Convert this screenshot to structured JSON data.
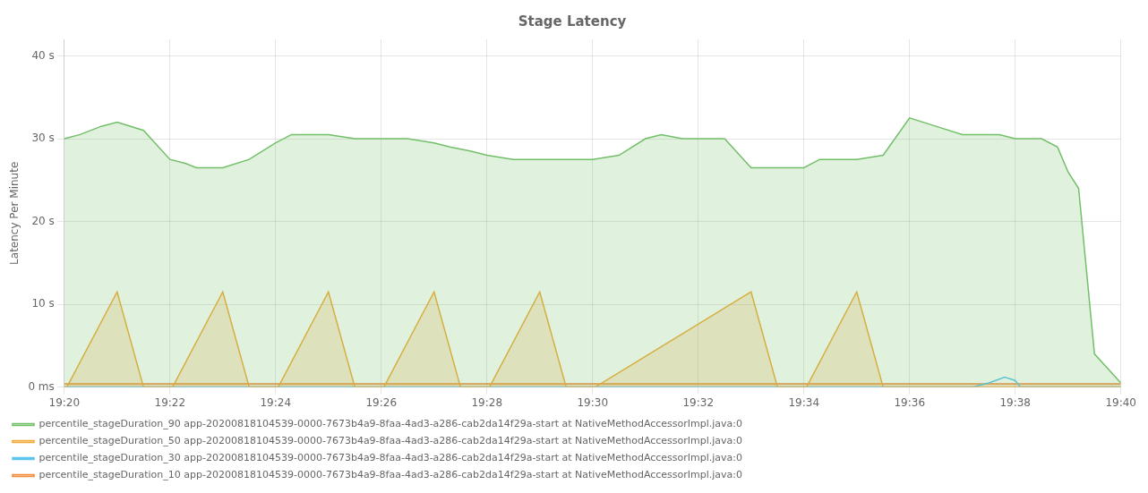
{
  "chart_data": {
    "type": "line",
    "title": "Stage Latency",
    "ylabel": "Latency Per Minute",
    "xlim": [
      0,
      20
    ],
    "xticks": [
      {
        "value": 0,
        "label": "19:20"
      },
      {
        "value": 2,
        "label": "19:22"
      },
      {
        "value": 4,
        "label": "19:24"
      },
      {
        "value": 6,
        "label": "19:26"
      },
      {
        "value": 8,
        "label": "19:28"
      },
      {
        "value": 10,
        "label": "19:30"
      },
      {
        "value": 12,
        "label": "19:32"
      },
      {
        "value": 14,
        "label": "19:34"
      },
      {
        "value": 16,
        "label": "19:36"
      },
      {
        "value": 18,
        "label": "19:38"
      },
      {
        "value": 20,
        "label": "19:40"
      }
    ],
    "ylim": [
      0,
      42
    ],
    "yticks": [
      {
        "value": 0,
        "label": "0 ms"
      },
      {
        "value": 10,
        "label": "10 s"
      },
      {
        "value": 20,
        "label": "20 s"
      },
      {
        "value": 30,
        "label": "30 s"
      },
      {
        "value": 40,
        "label": "40 s"
      }
    ],
    "grid": true,
    "legend": "bottom",
    "series": [
      {
        "name": "percentile_stageDuration_90 app-20200818104539-0000-7673b4a9-8faa-4ad3-a286-cab2da14f29a-start at NativeMethodAccessorImpl.java:0",
        "color": "#73bf69",
        "type": "area",
        "x": [
          0,
          0.3,
          0.7,
          1.0,
          1.5,
          2.0,
          2.3,
          2.5,
          2.8,
          3.0,
          3.5,
          4.0,
          4.3,
          4.8,
          5.0,
          5.5,
          5.8,
          6.0,
          6.5,
          7.0,
          7.3,
          7.7,
          8.0,
          8.5,
          9.0,
          9.3,
          9.7,
          10.0,
          10.5,
          11.0,
          11.3,
          11.7,
          12.0,
          12.5,
          13.0,
          13.5,
          14.0,
          14.3,
          14.8,
          15.0,
          15.5,
          16.0,
          16.5,
          17.0,
          17.3,
          17.7,
          18.0,
          18.5,
          18.8,
          19.0,
          19.2,
          19.5,
          20.0
        ],
        "values": [
          30,
          30.5,
          31.5,
          32,
          31,
          27.5,
          27,
          26.5,
          26.5,
          26.5,
          27.5,
          29.5,
          30.5,
          30.5,
          30.5,
          30,
          30,
          30,
          30,
          29.5,
          29,
          28.5,
          28,
          27.5,
          27.5,
          27.5,
          27.5,
          27.5,
          28,
          30,
          30.5,
          30,
          30,
          30,
          26.5,
          26.5,
          26.5,
          27.5,
          27.5,
          27.5,
          28,
          32.5,
          31.5,
          30.5,
          30.5,
          30.5,
          30,
          30,
          29,
          26,
          24,
          4,
          0.5
        ]
      },
      {
        "name": "percentile_stageDuration_50 app-20200818104539-0000-7673b4a9-8faa-4ad3-a286-cab2da14f29a-start at NativeMethodAccessorImpl.java:0",
        "color": "#f2a935",
        "type": "area",
        "x": [
          0,
          0.05,
          1.0,
          1.5,
          2.0,
          2.05,
          3.0,
          3.5,
          4.0,
          4.05,
          5.0,
          5.5,
          6.0,
          6.05,
          7.0,
          7.5,
          8.0,
          8.05,
          9.0,
          9.5,
          10.0,
          10.05,
          13.0,
          13.5,
          14.0,
          14.05,
          15.0,
          15.5,
          16.0,
          16.05,
          20.0
        ],
        "values": [
          0,
          0,
          11.5,
          0,
          0,
          0,
          11.5,
          0,
          0,
          0,
          11.5,
          0,
          0,
          0,
          11.5,
          0,
          0,
          0,
          11.5,
          0,
          0,
          0,
          11.5,
          0,
          0,
          0,
          11.5,
          0,
          0,
          0,
          0
        ]
      },
      {
        "name": "percentile_stageDuration_30 app-20200818104539-0000-7673b4a9-8faa-4ad3-a286-cab2da14f29a-start at NativeMethodAccessorImpl.java:0",
        "color": "#5bc5ed",
        "type": "line",
        "x": [
          0,
          17.2,
          17.5,
          17.8,
          18.0,
          18.1,
          20.0
        ],
        "values": [
          0,
          0,
          0.5,
          1.2,
          0.8,
          0,
          0
        ]
      },
      {
        "name": "percentile_stageDuration_10 app-20200818104539-0000-7673b4a9-8faa-4ad3-a286-cab2da14f29a-start at NativeMethodAccessorImpl.java:0",
        "color": "#f28b38",
        "type": "area",
        "x": [
          0,
          20.0
        ],
        "values": [
          0.4,
          0.4
        ]
      }
    ]
  }
}
